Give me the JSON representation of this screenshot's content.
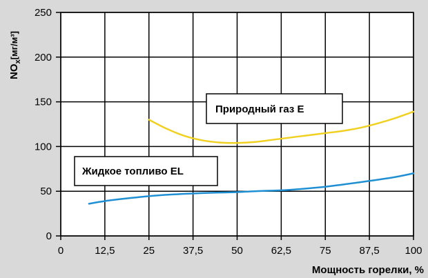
{
  "colors": {
    "background": "#d9d9d9",
    "plot_background": "#ffffff",
    "grid": "#000000",
    "gas": "#f0d020",
    "oil": "#1f8fd3"
  },
  "chart_data": {
    "type": "line",
    "title": "",
    "xlabel": "Мощность горелки, %",
    "ylabel": "NOx[мг/м³]",
    "ylabel_parts": {
      "main": "NO",
      "sub": "x",
      "unit": "[мг/м³]"
    },
    "xlim": [
      0,
      100
    ],
    "ylim": [
      0,
      250
    ],
    "x_ticks": [
      0,
      12.5,
      25,
      37.5,
      50,
      62.5,
      75,
      87.5,
      100
    ],
    "x_tick_labels": [
      "0",
      "12,5",
      "25",
      "37,5",
      "50",
      "62,5",
      "75",
      "87,5",
      "100"
    ],
    "y_ticks": [
      0,
      50,
      100,
      150,
      200,
      250
    ],
    "y_tick_labels": [
      "0",
      "50",
      "100",
      "150",
      "200",
      "250"
    ],
    "grid": true,
    "series": [
      {
        "name": "Природный газ E",
        "color": "#f0d020",
        "x": [
          25,
          30,
          35,
          40,
          45,
          50,
          55,
          60,
          65,
          70,
          75,
          80,
          85,
          90,
          95,
          100
        ],
        "y": [
          130,
          120,
          112,
          107,
          104.5,
          104,
          105,
          107.5,
          110,
          112.5,
          115,
          117.5,
          121,
          126,
          132,
          139
        ]
      },
      {
        "name": "Жидкое топливо EL",
        "color": "#1f8fd3",
        "x": [
          8,
          12.5,
          20,
          25,
          30,
          37.5,
          45,
          50,
          55,
          62.5,
          68,
          75,
          80,
          87.5,
          95,
          100
        ],
        "y": [
          36,
          39,
          42.5,
          44.5,
          46,
          47.5,
          48.5,
          49,
          50,
          51,
          52.5,
          55,
          57.5,
          61.5,
          66,
          70
        ]
      }
    ]
  }
}
